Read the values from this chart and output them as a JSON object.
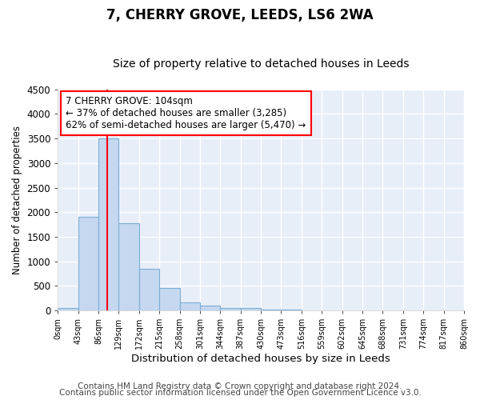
{
  "title": "7, CHERRY GROVE, LEEDS, LS6 2WA",
  "subtitle": "Size of property relative to detached houses in Leeds",
  "xlabel": "Distribution of detached houses by size in Leeds",
  "ylabel": "Number of detached properties",
  "bar_color": "#c5d8f0",
  "bar_edge_color": "#7aadd4",
  "background_color": "#e8eef8",
  "grid_color": "#ffffff",
  "bin_labels": [
    "0sqm",
    "43sqm",
    "86sqm",
    "129sqm",
    "172sqm",
    "215sqm",
    "258sqm",
    "301sqm",
    "344sqm",
    "387sqm",
    "430sqm",
    "473sqm",
    "516sqm",
    "559sqm",
    "602sqm",
    "645sqm",
    "688sqm",
    "731sqm",
    "774sqm",
    "817sqm",
    "860sqm"
  ],
  "bar_values": [
    50,
    1900,
    3500,
    1780,
    850,
    450,
    160,
    100,
    55,
    45,
    25,
    20,
    0,
    0,
    0,
    0,
    0,
    0,
    0,
    0
  ],
  "ylim": [
    0,
    4500
  ],
  "annotation_text": "7 CHERRY GROVE: 104sqm\n← 37% of detached houses are smaller (3,285)\n62% of semi-detached houses are larger (5,470) →",
  "footer1": "Contains HM Land Registry data © Crown copyright and database right 2024.",
  "footer2": "Contains public sector information licensed under the Open Government Licence v3.0.",
  "title_fontsize": 12,
  "subtitle_fontsize": 10,
  "annotation_fontsize": 8.5,
  "footer_fontsize": 7.5,
  "ylabel_fontsize": 8.5,
  "xlabel_fontsize": 9.5
}
